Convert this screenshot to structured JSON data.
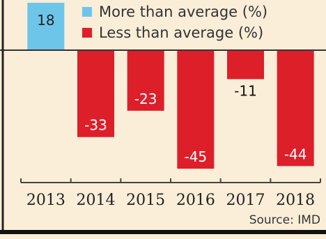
{
  "chart_data": {
    "type": "bar",
    "title": "",
    "xlabel": "",
    "ylabel": "",
    "categories": [
      "2013",
      "2014",
      "2015",
      "2016",
      "2017",
      "2018"
    ],
    "values": [
      18,
      -33,
      -23,
      -45,
      -11,
      -44
    ],
    "value_labels": [
      "18",
      "-33",
      "-23",
      "-45",
      "-11",
      "-44"
    ],
    "series": [
      {
        "name": "More than average (%)",
        "color": "#6ec5ea"
      },
      {
        "name": "Less than average (%)",
        "color": "#dd1f2a"
      }
    ],
    "ylim": [
      -45,
      18
    ],
    "grid": false,
    "legend": "top",
    "source": "Source: IMD"
  }
}
